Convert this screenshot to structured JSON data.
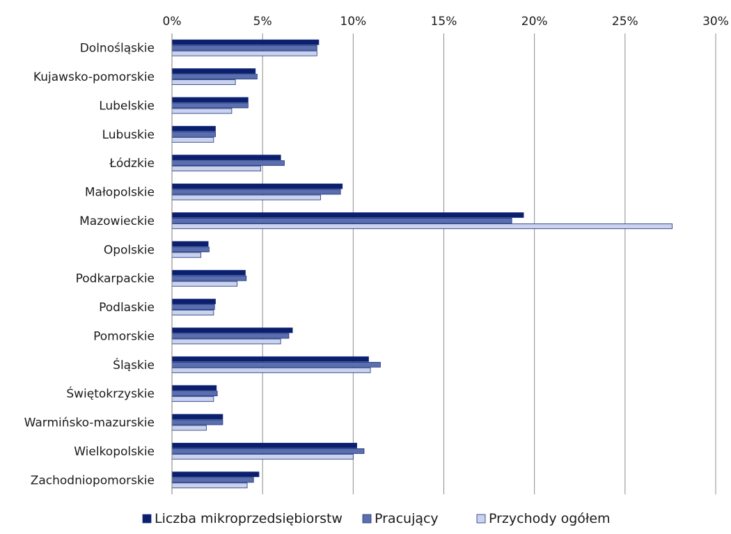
{
  "chart_data": {
    "type": "bar",
    "orientation": "horizontal",
    "categories": [
      "Dolnośląskie",
      "Kujawsko-pomorskie",
      "Lubelskie",
      "Lubuskie",
      "Łódzkie",
      "Małopolskie",
      "Mazowieckie",
      "Opolskie",
      "Podkarpackie",
      "Podlaskie",
      "Pomorskie",
      "Śląskie",
      "Świętokrzyskie",
      "Warmińsko-mazurskie",
      "Wielkopolskie",
      "Zachodniopomorskie"
    ],
    "series": [
      {
        "name": "Liczba mikroprzedsiębiorstw",
        "color": "#0a1f6e",
        "values": [
          8.1,
          4.6,
          4.2,
          2.4,
          6.0,
          9.4,
          19.4,
          2.0,
          4.05,
          2.4,
          6.65,
          10.85,
          2.45,
          2.8,
          10.2,
          4.8
        ]
      },
      {
        "name": "Pracujący",
        "color": "#5a70ae",
        "values": [
          8.0,
          4.7,
          4.2,
          2.4,
          6.2,
          9.3,
          18.75,
          2.05,
          4.1,
          2.35,
          6.45,
          11.5,
          2.5,
          2.8,
          10.6,
          4.5
        ]
      },
      {
        "name": "Przychody ogółem",
        "color": "#c9d3ee",
        "values": [
          8.0,
          3.5,
          3.3,
          2.3,
          4.9,
          8.2,
          27.6,
          1.6,
          3.6,
          2.3,
          6.0,
          10.95,
          2.3,
          1.9,
          10.0,
          4.15
        ]
      }
    ],
    "x_ticks": [
      "0%",
      "5%",
      "10%",
      "15%",
      "20%",
      "25%",
      "30%"
    ],
    "xlim": [
      0,
      30
    ],
    "x_unit": "%",
    "axis_position": "top",
    "grid": true,
    "legend_position": "bottom"
  }
}
